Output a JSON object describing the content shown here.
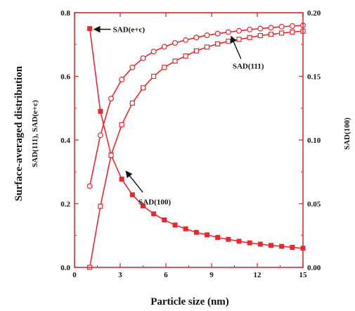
{
  "chart_data": {
    "type": "line",
    "xlabel": "Particle size (nm)",
    "ylabel_left_main": "Surface-averaged distribution",
    "ylabel_left_sub": "SAD(111), SAD(e+c)",
    "ylabel_right": "SAD(100)",
    "xlim": [
      0,
      15
    ],
    "ylim_left": [
      0.0,
      0.8
    ],
    "ylim_right": [
      0.0,
      0.2
    ],
    "xticks": [
      "0",
      "3",
      "6",
      "9",
      "12",
      "15"
    ],
    "yticks_left": [
      "0.0",
      "0.2",
      "0.4",
      "0.6",
      "0.8"
    ],
    "yticks_right": [
      "0.00",
      "0.05",
      "0.10",
      "0.15",
      "0.20"
    ],
    "x": [
      1.0,
      1.7,
      2.4,
      3.1,
      3.8,
      4.5,
      5.2,
      5.9,
      6.6,
      7.3,
      8.0,
      8.7,
      9.4,
      10.1,
      10.8,
      11.5,
      12.2,
      12.9,
      13.6,
      14.3,
      15.0
    ],
    "series": [
      {
        "name": "SAD(e+c)",
        "axis": "left",
        "marker": "filled-square",
        "values": [
          0.75,
          0.49,
          0.353,
          0.277,
          0.228,
          0.193,
          0.168,
          0.149,
          0.133,
          0.121,
          0.11,
          0.102,
          0.094,
          0.088,
          0.082,
          0.077,
          0.073,
          0.069,
          0.066,
          0.063,
          0.06
        ]
      },
      {
        "name": "SAD(111)",
        "axis": "left",
        "marker": "open-circle",
        "values": [
          0.255,
          0.415,
          0.53,
          0.59,
          0.628,
          0.657,
          0.678,
          0.693,
          0.705,
          0.714,
          0.722,
          0.729,
          0.734,
          0.739,
          0.743,
          0.747,
          0.75,
          0.753,
          0.756,
          0.758,
          0.76
        ]
      },
      {
        "name": "SAD(100)",
        "axis": "right",
        "marker": "open-square",
        "values": [
          0.0,
          0.048,
          0.088,
          0.112,
          0.129,
          0.141,
          0.15,
          0.157,
          0.162,
          0.166,
          0.17,
          0.173,
          0.1755,
          0.1775,
          0.179,
          0.1805,
          0.182,
          0.183,
          0.184,
          0.1848,
          0.1855
        ]
      }
    ],
    "annotations": [
      {
        "text": "SAD(e+c)",
        "target_series": "SAD(e+c)",
        "target_x": 1.0
      },
      {
        "text": "SAD(111)",
        "target_series": "SAD(111)",
        "target_x": 10.1
      },
      {
        "text": "SAD(100)",
        "target_series": "SAD(100)",
        "target_x": 3.1
      }
    ],
    "color": "#e8282d"
  }
}
